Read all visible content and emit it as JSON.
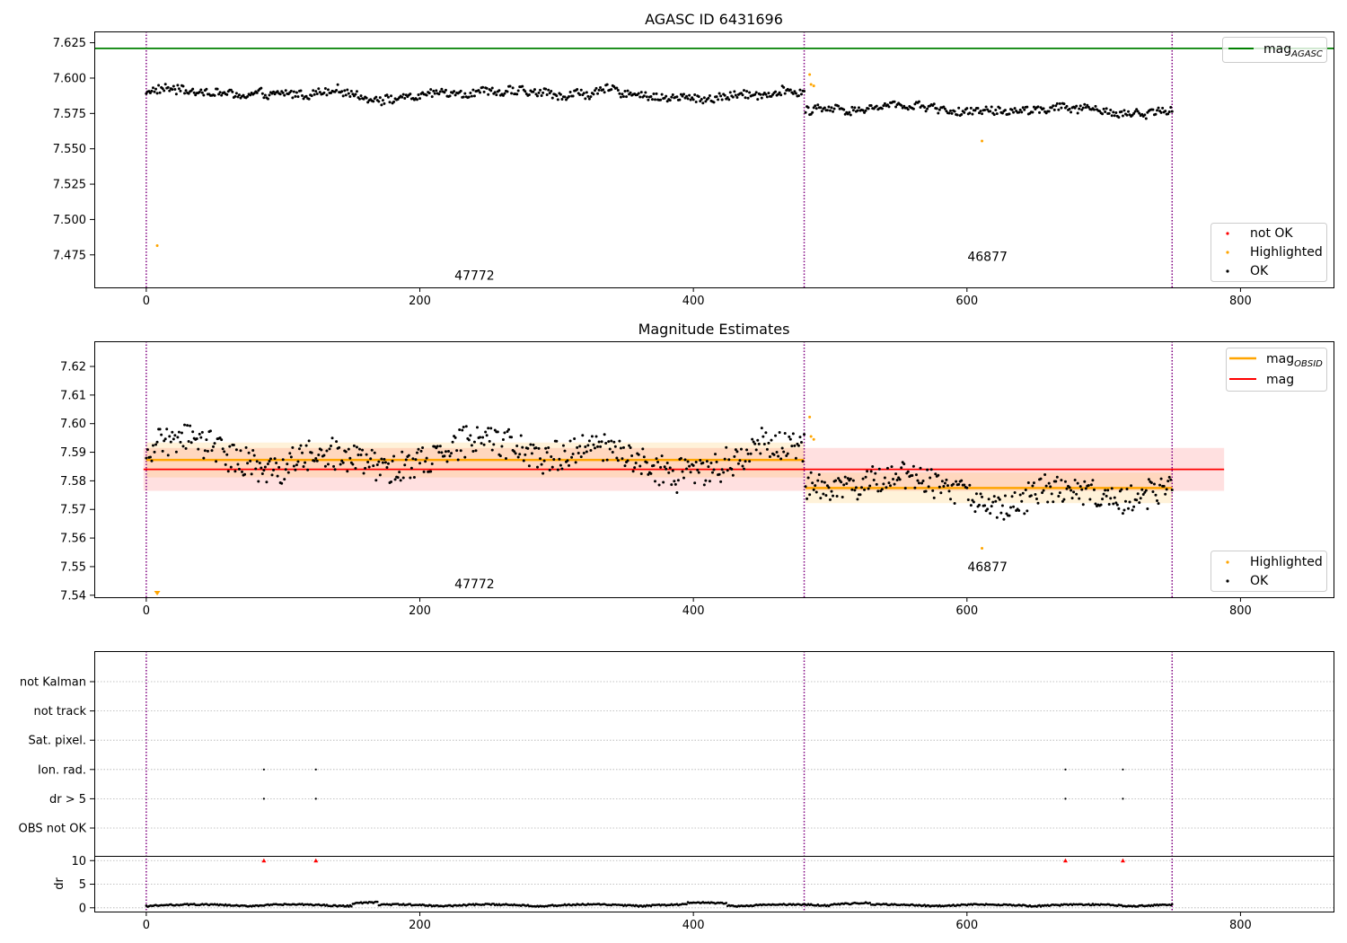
{
  "chart_data": [
    {
      "type": "scatter",
      "title": "AGASC ID 6431696",
      "xlim": [
        -38,
        868
      ],
      "ylim": [
        7.452,
        7.633
      ],
      "yticks": [
        7.475,
        7.5,
        7.525,
        7.55,
        7.575,
        7.6,
        7.625
      ],
      "ytick_labels": [
        "7.475",
        "7.500",
        "7.525",
        "7.550",
        "7.575",
        "7.600",
        "7.625"
      ],
      "xticks": [
        0,
        200,
        400,
        600,
        800
      ],
      "xtick_labels": [
        "0",
        "200",
        "400",
        "600",
        "800"
      ],
      "obsid_boundaries": [
        0,
        481,
        750
      ],
      "obsid_labels": [
        {
          "text": "47772",
          "x": 240,
          "y": 7.4575
        },
        {
          "text": "46877",
          "x": 615,
          "y": 7.4707
        }
      ],
      "agasc_mag": 7.621,
      "segments": [
        {
          "x_start": 0,
          "x_end": 481,
          "base": 7.5888,
          "amp": 0.0052
        },
        {
          "x_start": 482,
          "x_end": 750,
          "base": 7.5773,
          "amp": 0.0048
        }
      ],
      "highlighted_points": [
        {
          "x": 8,
          "y": 7.4815
        },
        {
          "x": 485,
          "y": 7.6025
        },
        {
          "x": 486,
          "y": 7.5955
        },
        {
          "x": 488,
          "y": 7.5945
        },
        {
          "x": 611,
          "y": 7.5555
        }
      ],
      "legend_top": {
        "location": "upper right",
        "entries": [
          {
            "label": "mag",
            "subscript": "AGASC",
            "color": "#008000"
          }
        ]
      },
      "legend_bottom": {
        "location": "lower right",
        "entries": [
          {
            "label": "not OK",
            "color": "#ff0000"
          },
          {
            "label": "Highlighted",
            "color": "#ffa500"
          },
          {
            "label": "OK",
            "color": "#000000"
          }
        ]
      }
    },
    {
      "type": "scatter",
      "title": "Magnitude Estimates",
      "xlim": [
        -38,
        868
      ],
      "ylim": [
        7.5393,
        7.6288
      ],
      "yticks": [
        7.54,
        7.55,
        7.56,
        7.57,
        7.58,
        7.59,
        7.6,
        7.61,
        7.62
      ],
      "ytick_labels": [
        "7.54",
        "7.55",
        "7.56",
        "7.57",
        "7.58",
        "7.59",
        "7.60",
        "7.61",
        "7.62"
      ],
      "xticks": [
        0,
        200,
        400,
        600,
        800
      ],
      "xtick_labels": [
        "0",
        "200",
        "400",
        "600",
        "800"
      ],
      "obsid_boundaries": [
        0,
        481,
        750
      ],
      "obsid_labels": [
        {
          "text": "47772",
          "x": 240,
          "y": 7.5425
        },
        {
          "text": "46877",
          "x": 615,
          "y": 7.5484
        }
      ],
      "mag": 7.584,
      "mag_band": [
        7.5765,
        7.5915
      ],
      "mag_line_x": [
        -2,
        788
      ],
      "obsid_mags": [
        {
          "x_start": 0,
          "x_end": 481,
          "mag": 7.5873,
          "band": [
            7.5812,
            7.5934
          ]
        },
        {
          "x_start": 482,
          "x_end": 750,
          "mag": 7.5775,
          "band": [
            7.5722,
            7.5829
          ]
        }
      ],
      "highlighted_points": [
        {
          "x": 485,
          "y": 7.6023
        },
        {
          "x": 486,
          "y": 7.5955
        },
        {
          "x": 488,
          "y": 7.5945
        },
        {
          "x": 611,
          "y": 7.5564
        }
      ],
      "highlighted_out_of_range": {
        "x": 8,
        "marker": "triangle-down"
      },
      "legend_top": {
        "location": "upper right",
        "entries": [
          {
            "label": "mag",
            "subscript": "OBSID",
            "color": "#ffa500"
          },
          {
            "label": "mag",
            "subscript": "",
            "color": "#ff0000"
          }
        ]
      },
      "legend_bottom": {
        "location": "lower right",
        "entries": [
          {
            "label": "Highlighted",
            "color": "#ffa500"
          },
          {
            "label": "OK",
            "color": "#000000"
          }
        ]
      }
    },
    {
      "type": "scatter",
      "title": "",
      "xlim": [
        -38,
        868
      ],
      "flag_labels": [
        "not Kalman",
        "not track",
        "Sat. pixel.",
        "Ion. rad.",
        "dr > 5",
        "OBS not OK"
      ],
      "flag_events": [
        {
          "flag": "Ion. rad.",
          "x": [
            86,
            124,
            672,
            714
          ]
        },
        {
          "flag": "dr > 5",
          "x": [
            86,
            124,
            672,
            714
          ]
        }
      ],
      "dr_ylabel": "dr",
      "dr_ylim": [
        -0.8,
        11.0
      ],
      "dr_yticks": [
        0,
        5,
        10
      ],
      "dr_ytick_labels": [
        "0",
        "5",
        "10"
      ],
      "dr_clipped_x": [
        86,
        124,
        672,
        714
      ],
      "dr_clip_value": 10,
      "xticks": [
        0,
        200,
        400,
        600,
        800
      ],
      "xtick_labels": [
        "0",
        "200",
        "400",
        "600",
        "800"
      ],
      "obsid_boundaries": [
        0,
        481,
        750
      ]
    }
  ],
  "colors": {
    "ok": "#000000",
    "highlighted": "#ffa500",
    "not_ok": "#ff0000",
    "agasc": "#008000",
    "mag": "#ff0000",
    "obsid_mag": "#ffa500",
    "boundary": "#800080"
  }
}
